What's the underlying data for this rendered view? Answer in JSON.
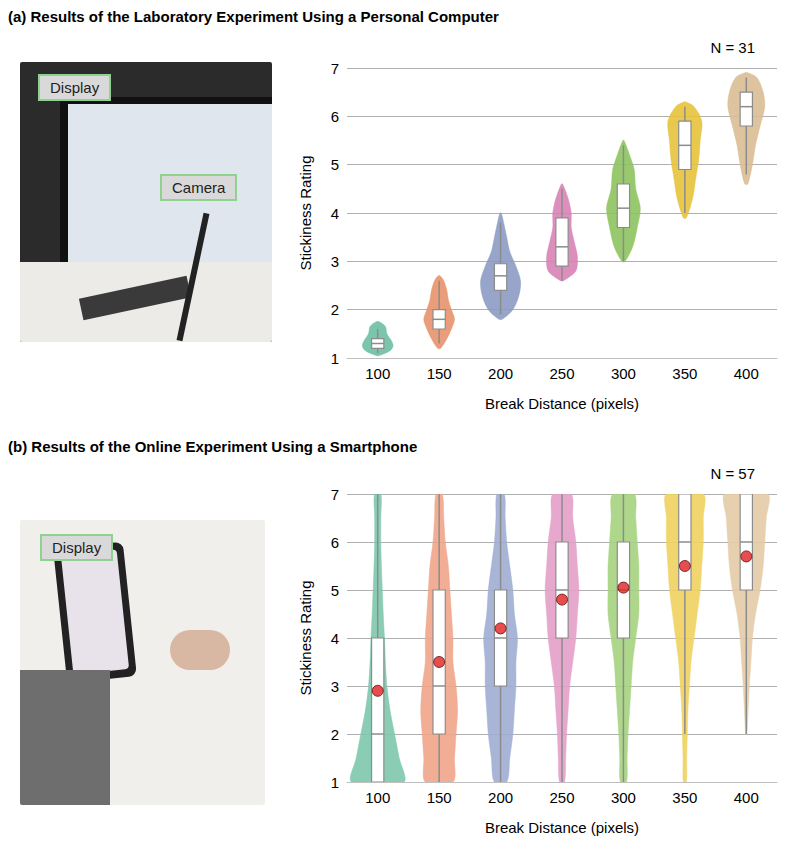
{
  "chart_data": [
    {
      "type": "violin",
      "title": "(a) Results of the Laboratory Experiment Using a Personal Computer",
      "photo_labels": [
        "Display",
        "Camera"
      ],
      "annotations": [
        "N = 31"
      ],
      "x_label": "Break Distance (pixels)",
      "y_label": "Stickiness Rating",
      "categories": [
        100,
        150,
        200,
        250,
        300,
        350,
        400
      ],
      "ylim": [
        1,
        7
      ],
      "yticks": [
        1,
        2,
        3,
        4,
        5,
        6,
        7
      ],
      "grid": true,
      "groups": [
        {
          "color": "#6bbfa3",
          "box": [
            1.1,
            1.2,
            1.3,
            1.4,
            1.6
          ],
          "violin_y": [
            1.05,
            1.15,
            1.25,
            1.35,
            1.5,
            1.65,
            1.75
          ],
          "violin_width": [
            0.05,
            0.4,
            0.5,
            0.45,
            0.3,
            0.25,
            0.05
          ]
        },
        {
          "color": "#e8926b",
          "box": [
            1.3,
            1.6,
            1.8,
            2.0,
            2.6
          ],
          "violin_y": [
            1.2,
            1.4,
            1.6,
            1.8,
            2.0,
            2.2,
            2.4,
            2.6,
            2.7
          ],
          "violin_width": [
            0.05,
            0.25,
            0.4,
            0.5,
            0.4,
            0.3,
            0.25,
            0.15,
            0.03
          ]
        },
        {
          "color": "#8c9bc4",
          "box": [
            1.9,
            2.4,
            2.7,
            2.95,
            3.8
          ],
          "violin_y": [
            1.8,
            2.0,
            2.3,
            2.6,
            2.9,
            3.2,
            3.5,
            3.8,
            4.0
          ],
          "violin_width": [
            0.05,
            0.4,
            0.6,
            0.65,
            0.5,
            0.3,
            0.2,
            0.1,
            0.02
          ]
        },
        {
          "color": "#d883b5",
          "box": [
            2.6,
            2.9,
            3.3,
            3.9,
            4.5
          ],
          "violin_y": [
            2.6,
            2.8,
            3.1,
            3.4,
            3.7,
            4.0,
            4.3,
            4.6
          ],
          "violin_width": [
            0.05,
            0.45,
            0.5,
            0.4,
            0.3,
            0.3,
            0.2,
            0.02
          ]
        },
        {
          "color": "#8dc35e",
          "box": [
            3.0,
            3.7,
            4.1,
            4.6,
            5.4
          ],
          "violin_y": [
            3.0,
            3.3,
            3.7,
            4.1,
            4.5,
            4.9,
            5.2,
            5.5
          ],
          "violin_width": [
            0.05,
            0.3,
            0.45,
            0.55,
            0.4,
            0.35,
            0.2,
            0.02
          ]
        },
        {
          "color": "#e5c23a",
          "box": [
            4.0,
            4.9,
            5.4,
            5.9,
            6.2
          ],
          "violin_y": [
            3.9,
            4.3,
            4.7,
            5.1,
            5.5,
            5.9,
            6.2,
            6.3
          ],
          "violin_width": [
            0.05,
            0.25,
            0.35,
            0.45,
            0.5,
            0.55,
            0.3,
            0.02
          ]
        },
        {
          "color": "#d9bc93",
          "box": [
            4.8,
            5.8,
            6.2,
            6.5,
            6.8
          ],
          "violin_y": [
            4.6,
            5.0,
            5.4,
            5.8,
            6.2,
            6.5,
            6.8,
            6.9
          ],
          "violin_width": [
            0.05,
            0.2,
            0.3,
            0.45,
            0.6,
            0.55,
            0.35,
            0.05
          ]
        }
      ]
    },
    {
      "type": "violin",
      "title": "(b) Results of the Online Experiment Using a Smartphone",
      "photo_labels": [
        "Display"
      ],
      "annotations": [
        "N = 57"
      ],
      "x_label": "Break Distance (pixels)",
      "y_label": "Stickiness Rating",
      "categories": [
        100,
        150,
        200,
        250,
        300,
        350,
        400
      ],
      "ylim": [
        1,
        7
      ],
      "yticks": [
        1,
        2,
        3,
        4,
        5,
        6,
        7
      ],
      "grid": true,
      "groups": [
        {
          "color": "#7ec8ac",
          "box": [
            1,
            1,
            2,
            4,
            7
          ],
          "mean": 2.9,
          "violin_y": [
            1,
            1.5,
            2,
            2.5,
            3,
            3.5,
            4,
            4.5,
            5,
            5.5,
            6,
            6.5,
            7
          ],
          "violin_width": [
            0.85,
            0.7,
            0.55,
            0.4,
            0.3,
            0.25,
            0.22,
            0.18,
            0.15,
            0.12,
            0.1,
            0.1,
            0.1
          ]
        },
        {
          "color": "#efa58a",
          "box": [
            1,
            2,
            3,
            5,
            7
          ],
          "mean": 3.5,
          "violin_y": [
            1,
            1.5,
            2,
            2.5,
            3,
            3.5,
            4,
            4.5,
            5,
            5.5,
            6,
            6.5,
            7
          ],
          "violin_width": [
            0.45,
            0.5,
            0.55,
            0.6,
            0.55,
            0.45,
            0.45,
            0.4,
            0.35,
            0.3,
            0.2,
            0.15,
            0.1
          ]
        },
        {
          "color": "#9eadd3",
          "box": [
            1,
            3,
            4,
            5,
            7
          ],
          "mean": 4.2,
          "violin_y": [
            1,
            1.5,
            2,
            2.5,
            3,
            3.5,
            4,
            4.5,
            5,
            5.5,
            6,
            6.5,
            7
          ],
          "violin_width": [
            0.2,
            0.3,
            0.4,
            0.45,
            0.5,
            0.5,
            0.55,
            0.45,
            0.4,
            0.3,
            0.2,
            0.15,
            0.12
          ]
        },
        {
          "color": "#e3a0c8",
          "box": [
            1,
            4,
            5,
            6,
            7
          ],
          "mean": 4.8,
          "violin_y": [
            1,
            1.5,
            2,
            2.5,
            3,
            3.5,
            4,
            4.5,
            5,
            5.5,
            6,
            6.5,
            7
          ],
          "violin_width": [
            0.08,
            0.12,
            0.15,
            0.2,
            0.25,
            0.35,
            0.45,
            0.5,
            0.55,
            0.5,
            0.45,
            0.35,
            0.3
          ]
        },
        {
          "color": "#a5d37e",
          "box": [
            1,
            4,
            5,
            6,
            7
          ],
          "mean": 5.05,
          "violin_y": [
            1,
            1.5,
            2,
            2.5,
            3,
            3.5,
            4,
            4.5,
            5,
            5.5,
            6,
            6.5,
            7
          ],
          "violin_width": [
            0.1,
            0.12,
            0.15,
            0.2,
            0.25,
            0.3,
            0.4,
            0.5,
            0.5,
            0.5,
            0.45,
            0.4,
            0.35
          ]
        },
        {
          "color": "#f0d260",
          "box": [
            2,
            5,
            6,
            7,
            7
          ],
          "mean": 5.5,
          "violin_y": [
            1,
            1.5,
            2,
            2.5,
            3,
            3.5,
            4,
            4.5,
            5,
            5.5,
            6,
            6.5,
            7
          ],
          "violin_width": [
            0.05,
            0.06,
            0.08,
            0.1,
            0.15,
            0.2,
            0.3,
            0.4,
            0.5,
            0.55,
            0.6,
            0.6,
            0.6
          ]
        },
        {
          "color": "#e3cba7",
          "box": [
            2,
            5,
            6,
            7,
            7
          ],
          "mean": 5.7,
          "violin_y": [
            2,
            2.5,
            3,
            3.5,
            4,
            4.5,
            5,
            5.5,
            6,
            6.5,
            7
          ],
          "violin_width": [
            0.02,
            0.06,
            0.1,
            0.15,
            0.2,
            0.3,
            0.45,
            0.55,
            0.6,
            0.65,
            0.7
          ]
        }
      ]
    }
  ]
}
